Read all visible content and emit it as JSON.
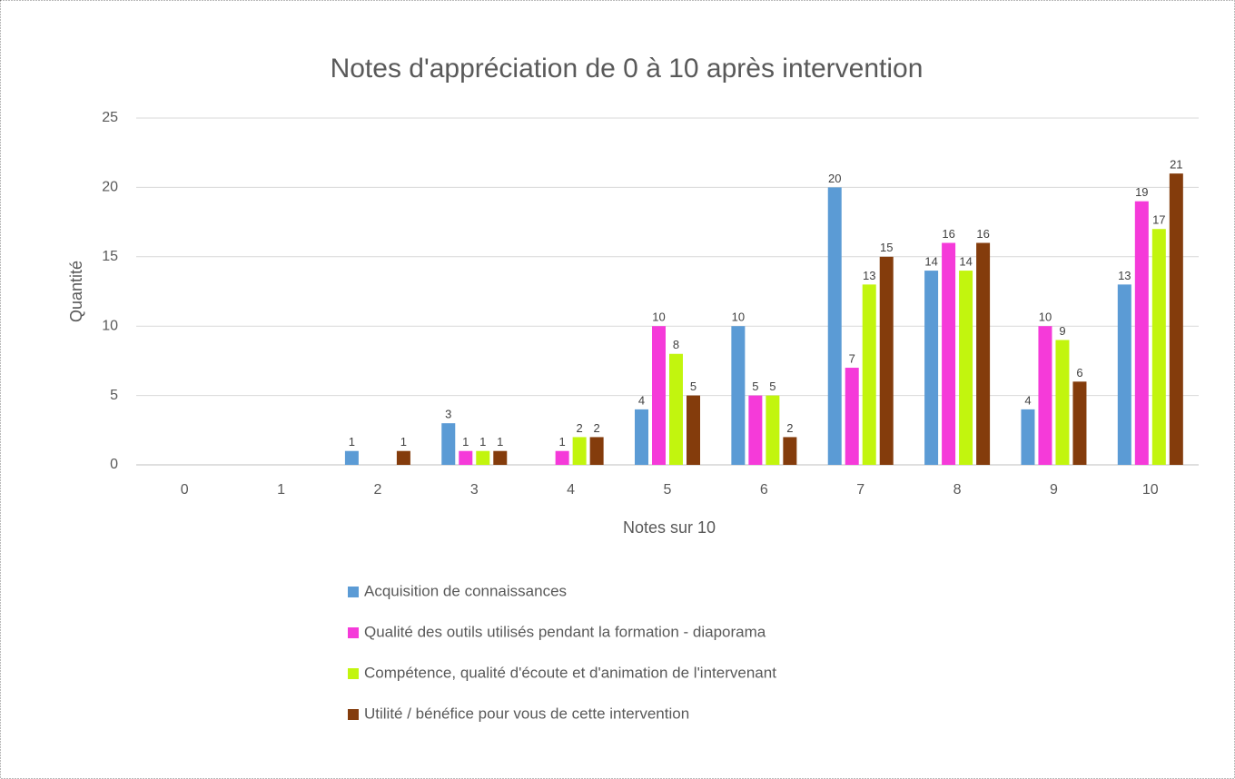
{
  "chart_data": {
    "type": "bar",
    "title": "Notes d'appréciation de 0 à 10 après intervention",
    "x_label": "Notes sur 10",
    "y_label": "Quantité",
    "categories": [
      "0",
      "1",
      "2",
      "3",
      "4",
      "5",
      "6",
      "7",
      "8",
      "9",
      "10"
    ],
    "series": [
      {
        "name": "Acquisition de connaissances",
        "color": "#5b9bd5",
        "values": [
          null,
          null,
          1,
          3,
          null,
          4,
          10,
          20,
          14,
          4,
          13
        ]
      },
      {
        "name": "Qualité des outils utilisés pendant la formation - diaporama",
        "color": "#f53ad9",
        "values": [
          null,
          null,
          null,
          1,
          1,
          10,
          5,
          7,
          16,
          10,
          19
        ]
      },
      {
        "name": "Compétence, qualité d'écoute et d'animation de l'intervenant",
        "color": "#c2f50e",
        "values": [
          null,
          null,
          null,
          1,
          2,
          8,
          5,
          13,
          14,
          9,
          17
        ]
      },
      {
        "name": "Utilité / bénéfice pour vous de cette intervention",
        "color": "#843c0c",
        "values": [
          null,
          null,
          1,
          1,
          2,
          5,
          2,
          15,
          16,
          6,
          21
        ]
      }
    ],
    "ylim": [
      0,
      25
    ],
    "yticks": [
      0,
      5,
      10,
      15,
      20,
      25
    ],
    "grid": true,
    "legend": "bottom"
  }
}
